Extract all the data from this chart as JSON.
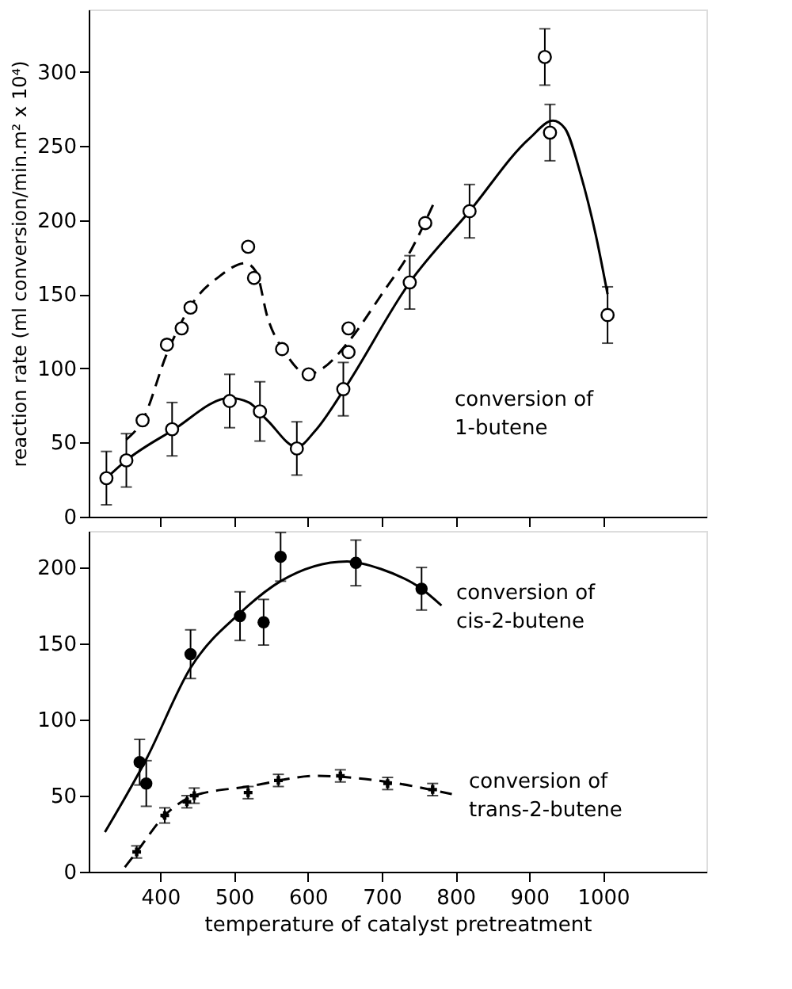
{
  "chart_data": [
    {
      "type": "scatter",
      "ylabel": "reaction rate (ml conversion/min.m² x 10⁴)",
      "xlim": [
        303,
        1140
      ],
      "xticks": [
        400,
        500,
        600,
        700,
        800,
        900,
        1000
      ],
      "ylim": [
        0,
        342
      ],
      "yticks": [
        0,
        50,
        100,
        150,
        200,
        250,
        300
      ],
      "tick_labels": "y",
      "grid": false,
      "annotations": [
        "conversion of\n1-butene"
      ],
      "series": [
        {
          "type": "line",
          "color": "#000000",
          "line_style": "solid",
          "x": [
            327,
            354,
            416,
            494,
            520,
            545,
            585,
            610,
            648,
            738,
            819,
            900,
            932,
            948,
            970,
            990,
            1006
          ],
          "values": [
            26,
            38,
            58,
            80,
            77,
            65,
            47,
            58,
            85,
            158,
            206,
            255,
            267,
            262,
            230,
            190,
            150
          ]
        },
        {
          "type": "line",
          "color": "#000000",
          "line_style": "dashed",
          "x": [
            354,
            376,
            409,
            441,
            480,
            515,
            530,
            545,
            570,
            600,
            620,
            655,
            700,
            740,
            772
          ],
          "values": [
            52,
            65,
            110,
            142,
            162,
            171,
            165,
            135,
            110,
            96,
            100,
            118,
            150,
            180,
            213
          ]
        },
        {
          "color": "#000000",
          "marker": "circle",
          "x": [
            327,
            354,
            416,
            494,
            535,
            585,
            648,
            738,
            819,
            921,
            928,
            1006
          ],
          "values": [
            26,
            38,
            59,
            78,
            71,
            46,
            86,
            158,
            206,
            310,
            259,
            136
          ],
          "errors": [
            18,
            18,
            18,
            18,
            20,
            18,
            18,
            18,
            18,
            19,
            19,
            19
          ]
        },
        {
          "color": "#000000",
          "marker": "circle",
          "x": [
            376,
            409,
            429,
            441,
            519,
            527,
            565,
            601,
            655,
            655,
            759
          ],
          "values": [
            65,
            116,
            127,
            141,
            182,
            161,
            113,
            96,
            127,
            111,
            198
          ]
        }
      ]
    },
    {
      "type": "scatter",
      "xlabel": "temperature of catalyst pretreatment",
      "xlim": [
        303,
        1140
      ],
      "xticks": [
        400,
        500,
        600,
        700,
        800,
        900,
        1000
      ],
      "ylim": [
        0,
        224
      ],
      "yticks": [
        0,
        50,
        100,
        150,
        200
      ],
      "grid": false,
      "annotations": [
        "conversion of\ncis-2-butene",
        "conversion of\ntrans-2-butene"
      ],
      "series": [
        {
          "type": "line",
          "color": "#000000",
          "line_style": "solid",
          "x": [
            325,
            381,
            441,
            508,
            563,
            653,
            699,
            754,
            781
          ],
          "values": [
            26,
            74,
            134,
            170,
            191,
            204,
            199,
            186,
            175
          ]
        },
        {
          "type": "line",
          "color": "#000000",
          "line_style": "dashed",
          "x": [
            352,
            368,
            406,
            446,
            519,
            613,
            708,
            795
          ],
          "values": [
            3,
            13,
            37,
            50,
            56,
            63,
            59,
            51
          ]
        },
        {
          "color": "#000000",
          "marker": "circle",
          "x": [
            372,
            381,
            441,
            508,
            540,
            563,
            665,
            754
          ],
          "values": [
            72,
            58,
            143,
            168,
            164,
            207,
            203,
            186
          ],
          "errors": [
            15,
            15,
            16,
            16,
            15,
            16,
            15,
            14
          ]
        },
        {
          "color": "#000000",
          "marker": "cross",
          "x": [
            368,
            406,
            436,
            446,
            519,
            560,
            644,
            708,
            769
          ],
          "values": [
            13,
            37,
            46,
            50,
            52,
            60,
            63,
            58,
            54
          ],
          "errors": [
            4,
            5,
            4,
            5,
            4,
            4,
            4,
            4,
            4
          ]
        }
      ]
    }
  ]
}
